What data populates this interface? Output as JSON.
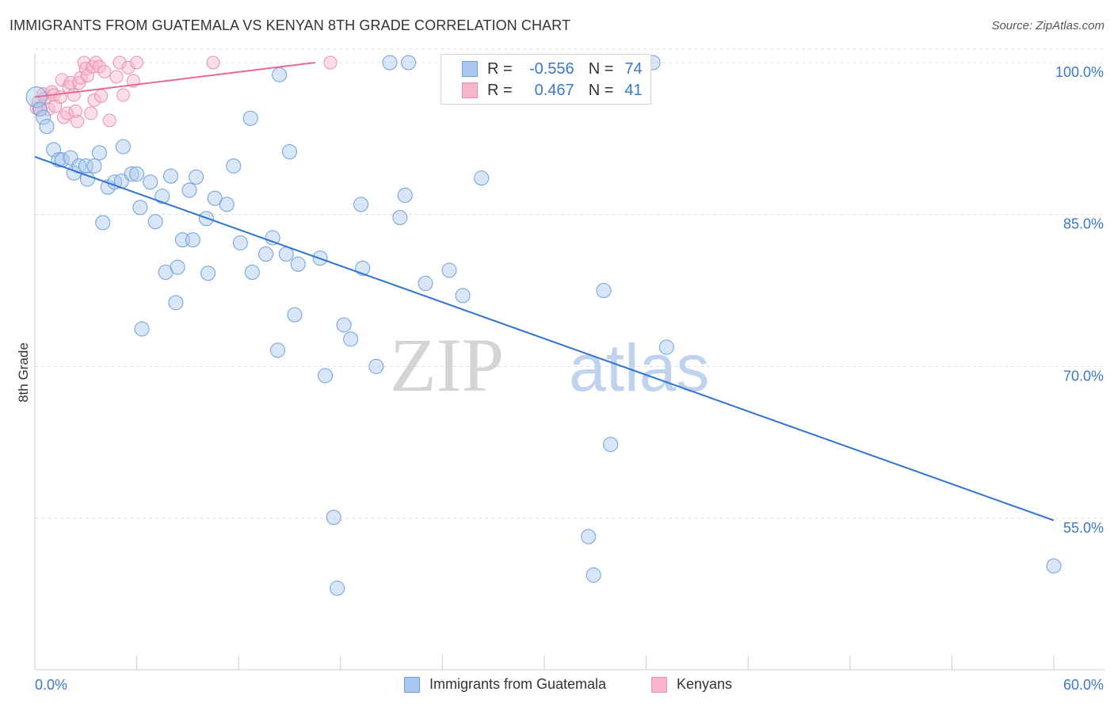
{
  "title": "IMMIGRANTS FROM GUATEMALA VS KENYAN 8TH GRADE CORRELATION CHART",
  "source": "Source: ZipAtlas.com",
  "watermark": {
    "zip": "ZIP",
    "atlas": "atlas"
  },
  "colors": {
    "blue_fill": "#a9c8ef",
    "blue_stroke": "#6e9fdc",
    "blue_line": "#2f72d0",
    "pink_fill": "#f7b6cb",
    "pink_stroke": "#ec8fae",
    "pink_line": "#e56b95",
    "axis_text": "#3a78c9",
    "grid": "#dcdcdc"
  },
  "legend": {
    "row1": {
      "r_label": "R =",
      "r_value": "-0.556",
      "n_label": "N =",
      "n_value": "74"
    },
    "row2": {
      "r_label": "R =",
      "r_value": "0.467",
      "n_label": "N =",
      "n_value": "41"
    }
  },
  "chart_data": {
    "type": "scatter",
    "title": "IMMIGRANTS FROM GUATEMALA VS KENYAN 8TH GRADE CORRELATION CHART",
    "xlabel": "",
    "ylabel": "8th Grade",
    "xlim": [
      0,
      60
    ],
    "ylim": [
      40,
      101
    ],
    "x_tick_labels": [
      "0.0%",
      "60.0%"
    ],
    "y_ticks": [
      55,
      70,
      85,
      100
    ],
    "y_tick_labels": [
      "55.0%",
      "70.0%",
      "85.0%",
      "100.0%"
    ],
    "grid": true,
    "legend_position": "top-center",
    "series": [
      {
        "name": "Immigrants from Guatemala",
        "color": "#a9c8ef",
        "points": [
          [
            0.1,
            96.6
          ],
          [
            0.3,
            95.4
          ],
          [
            0.5,
            94.6
          ],
          [
            0.7,
            93.7
          ],
          [
            1.1,
            91.4
          ],
          [
            1.4,
            90.4
          ],
          [
            1.6,
            90.4
          ],
          [
            2.1,
            90.6
          ],
          [
            2.3,
            89.1
          ],
          [
            2.6,
            89.8
          ],
          [
            3.0,
            89.8
          ],
          [
            3.1,
            88.5
          ],
          [
            3.5,
            89.8
          ],
          [
            3.8,
            91.1
          ],
          [
            4.0,
            84.2
          ],
          [
            4.3,
            87.7
          ],
          [
            4.7,
            88.2
          ],
          [
            5.1,
            88.3
          ],
          [
            5.2,
            91.7
          ],
          [
            5.7,
            89.0
          ],
          [
            6.0,
            89.0
          ],
          [
            6.2,
            85.7
          ],
          [
            6.8,
            88.2
          ],
          [
            7.1,
            84.3
          ],
          [
            7.5,
            86.8
          ],
          [
            7.7,
            79.3
          ],
          [
            8.0,
            88.8
          ],
          [
            8.4,
            79.8
          ],
          [
            8.7,
            82.5
          ],
          [
            9.1,
            87.4
          ],
          [
            9.3,
            82.5
          ],
          [
            9.5,
            88.7
          ],
          [
            10.1,
            84.6
          ],
          [
            10.2,
            79.2
          ],
          [
            10.6,
            86.6
          ],
          [
            11.3,
            86.0
          ],
          [
            11.7,
            89.8
          ],
          [
            12.1,
            82.2
          ],
          [
            12.7,
            94.5
          ],
          [
            8.3,
            76.3
          ],
          [
            6.3,
            73.7
          ],
          [
            12.8,
            79.3
          ],
          [
            13.6,
            81.1
          ],
          [
            14.0,
            82.7
          ],
          [
            14.3,
            71.6
          ],
          [
            14.4,
            98.8
          ],
          [
            14.8,
            81.1
          ],
          [
            15.0,
            91.2
          ],
          [
            15.3,
            75.1
          ],
          [
            15.5,
            80.1
          ],
          [
            16.8,
            80.7
          ],
          [
            17.1,
            69.1
          ],
          [
            17.6,
            55.1
          ],
          [
            17.8,
            48.1
          ],
          [
            18.2,
            74.1
          ],
          [
            18.6,
            72.7
          ],
          [
            19.2,
            86.0
          ],
          [
            19.3,
            79.7
          ],
          [
            20.1,
            70.0
          ],
          [
            20.9,
            100.0
          ],
          [
            21.5,
            84.7
          ],
          [
            21.8,
            86.9
          ],
          [
            22.0,
            100.0
          ],
          [
            23.0,
            78.2
          ],
          [
            24.4,
            79.5
          ],
          [
            25.2,
            77.0
          ],
          [
            25.5,
            100.0
          ],
          [
            26.3,
            88.6
          ],
          [
            32.6,
            53.2
          ],
          [
            32.9,
            49.4
          ],
          [
            33.5,
            77.5
          ],
          [
            33.9,
            62.3
          ],
          [
            36.4,
            100.0
          ],
          [
            37.2,
            71.9
          ],
          [
            60.0,
            50.3
          ]
        ]
      },
      {
        "name": "Kenyans",
        "color": "#f7b6cb",
        "points": [
          [
            0.1,
            95.5
          ],
          [
            0.2,
            96.1
          ],
          [
            0.3,
            95.4
          ],
          [
            0.5,
            96.9
          ],
          [
            0.6,
            96.5
          ],
          [
            0.8,
            95.4
          ],
          [
            1.0,
            97.1
          ],
          [
            1.1,
            96.8
          ],
          [
            1.2,
            95.7
          ],
          [
            1.5,
            96.6
          ],
          [
            1.6,
            98.3
          ],
          [
            1.7,
            94.6
          ],
          [
            1.9,
            95.0
          ],
          [
            2.0,
            97.6
          ],
          [
            2.1,
            98.0
          ],
          [
            2.3,
            96.8
          ],
          [
            2.4,
            95.2
          ],
          [
            2.5,
            94.2
          ],
          [
            2.6,
            98.0
          ],
          [
            2.7,
            98.5
          ],
          [
            2.9,
            100.0
          ],
          [
            3.0,
            99.4
          ],
          [
            3.1,
            98.7
          ],
          [
            3.3,
            95.0
          ],
          [
            3.4,
            99.6
          ],
          [
            3.5,
            96.3
          ],
          [
            3.6,
            100.0
          ],
          [
            3.8,
            99.6
          ],
          [
            3.9,
            96.7
          ],
          [
            4.1,
            99.1
          ],
          [
            4.4,
            94.3
          ],
          [
            4.8,
            98.6
          ],
          [
            5.0,
            100.0
          ],
          [
            5.2,
            96.8
          ],
          [
            5.5,
            99.5
          ],
          [
            5.8,
            98.2
          ],
          [
            6.0,
            100.0
          ],
          [
            10.5,
            100.0
          ],
          [
            17.4,
            100.0
          ],
          [
            24.7,
            100.0
          ],
          [
            25.1,
            100.0
          ]
        ]
      }
    ],
    "trend_lines": [
      {
        "series": "Immigrants from Guatemala",
        "x": [
          0,
          60
        ],
        "y": [
          90.7,
          54.8
        ]
      },
      {
        "series": "Kenyans",
        "x": [
          0,
          16.5
        ],
        "y": [
          96.6,
          100.0
        ]
      }
    ]
  },
  "bottom_legend": [
    {
      "label": "Immigrants from Guatemala"
    },
    {
      "label": "Kenyans"
    }
  ]
}
